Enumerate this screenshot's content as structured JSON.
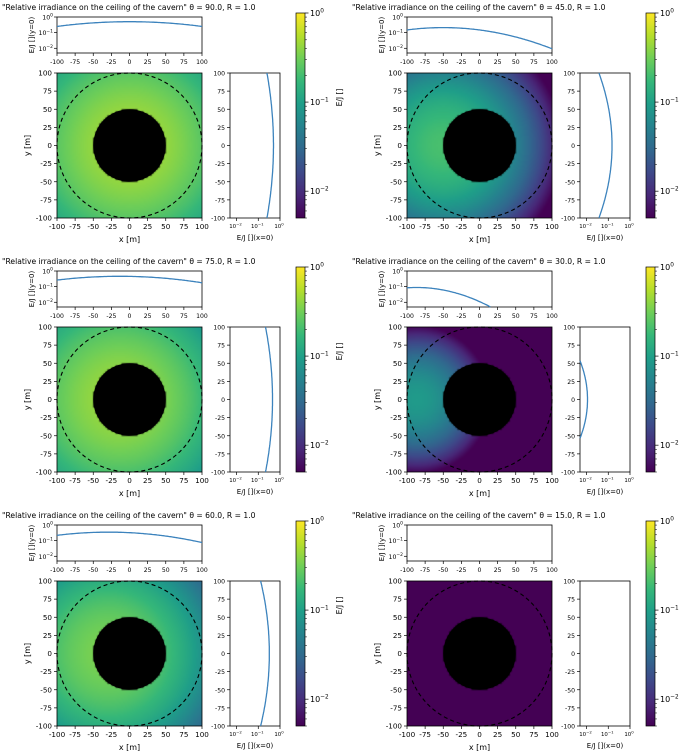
{
  "chart_data": [
    {
      "type": "heatmap",
      "title": "\"Relative irradiance on the ceiling of the cavern\" θ = 90.0, R = 1.0",
      "theta_deg": 90,
      "xlabel": "x [m]",
      "ylabel": "y [m]",
      "top_ylabel": "E/J [](y=0)",
      "right_xlabel": "E/J [](x=0)",
      "colorbar_label": "E/J []",
      "xlim": [
        -100,
        100
      ],
      "ylim": [
        -100,
        100
      ],
      "log_range": [
        0.005,
        1.0
      ],
      "colorscale": "viridis",
      "shadow_radius": 50,
      "cavern_radius": 100
    },
    {
      "type": "heatmap",
      "title": "\"Relative irradiance on the ceiling of the cavern\" θ = 45.0, R = 1.0",
      "theta_deg": 45,
      "xlabel": "x [m]",
      "ylabel": "y [m]",
      "top_ylabel": "E/J [](y=0)",
      "right_xlabel": "E/J [](x=0)",
      "colorbar_label": "E/J []",
      "xlim": [
        -100,
        100
      ],
      "ylim": [
        -100,
        100
      ],
      "log_range": [
        0.005,
        1.0
      ],
      "colorscale": "viridis",
      "shadow_radius": 50,
      "cavern_radius": 100
    },
    {
      "type": "heatmap",
      "title": "\"Relative irradiance on the ceiling of the cavern\" θ = 75.0, R = 1.0",
      "theta_deg": 75,
      "xlabel": "x [m]",
      "ylabel": "y [m]",
      "top_ylabel": "E/J [](y=0)",
      "right_xlabel": "E/J [](x=0)",
      "colorbar_label": "E/J []",
      "xlim": [
        -100,
        100
      ],
      "ylim": [
        -100,
        100
      ],
      "log_range": [
        0.005,
        1.0
      ],
      "colorscale": "viridis",
      "shadow_radius": 50,
      "cavern_radius": 100
    },
    {
      "type": "heatmap",
      "title": "\"Relative irradiance on the ceiling of the cavern\" θ = 30.0, R = 1.0",
      "theta_deg": 30,
      "xlabel": "x [m]",
      "ylabel": "y [m]",
      "top_ylabel": "E/J [](y=0)",
      "right_xlabel": "E/J [](x=0)",
      "colorbar_label": "E/J []",
      "xlim": [
        -100,
        100
      ],
      "ylim": [
        -100,
        100
      ],
      "log_range": [
        0.005,
        1.0
      ],
      "colorscale": "viridis",
      "shadow_radius": 50,
      "cavern_radius": 100
    },
    {
      "type": "heatmap",
      "title": "\"Relative irradiance on the ceiling of the cavern\" θ = 60.0, R = 1.0",
      "theta_deg": 60,
      "xlabel": "x [m]",
      "ylabel": "y [m]",
      "top_ylabel": "E/J [](y=0)",
      "right_xlabel": "E/J [](x=0)",
      "colorbar_label": "E/J []",
      "xlim": [
        -100,
        100
      ],
      "ylim": [
        -100,
        100
      ],
      "log_range": [
        0.005,
        1.0
      ],
      "colorscale": "viridis",
      "shadow_radius": 50,
      "cavern_radius": 100
    },
    {
      "type": "heatmap",
      "title": "\"Relative irradiance on the ceiling of the cavern\" θ = 15.0, R = 1.0",
      "theta_deg": 15,
      "xlabel": "x [m]",
      "ylabel": "y [m]",
      "top_ylabel": "E/J [](y=0)",
      "right_xlabel": "E/J [](x=0)",
      "colorbar_label": "E/J []",
      "xlim": [
        -100,
        100
      ],
      "ylim": [
        -100,
        100
      ],
      "log_range": [
        0.005,
        1.0
      ],
      "colorscale": "viridis",
      "shadow_radius": 50,
      "cavern_radius": 100
    }
  ],
  "ticks": {
    "x": [
      "-100",
      "-75",
      "-50",
      "-25",
      "0",
      "25",
      "50",
      "75",
      "100"
    ],
    "x_values": [
      -100,
      -75,
      -50,
      -25,
      0,
      25,
      50,
      75,
      100
    ],
    "y": [
      "100",
      "75",
      "50",
      "25",
      "0",
      "-25",
      "-50",
      "-75",
      "-100"
    ],
    "y_values": [
      100,
      75,
      50,
      25,
      0,
      -25,
      -50,
      -75,
      -100
    ],
    "log_major": [
      {
        "base": "10",
        "exp": "0",
        "value": 1.0
      },
      {
        "base": "10",
        "exp": "−1",
        "value": 0.1
      },
      {
        "base": "10",
        "exp": "−2",
        "value": 0.01
      }
    ]
  }
}
